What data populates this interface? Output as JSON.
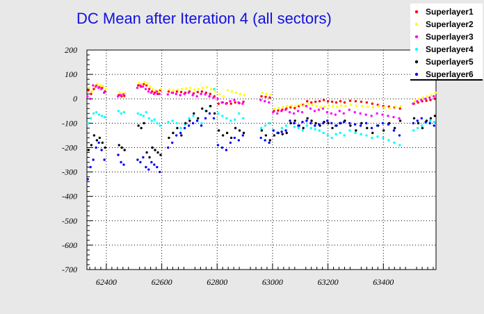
{
  "chart_data": {
    "type": "scatter",
    "title": "DC Mean after Iteration 4 (all sectors)",
    "xlabel": "",
    "ylabel": "",
    "xlim": [
      62330,
      63590
    ],
    "ylim": [
      -700,
      200
    ],
    "xticks": [
      62400,
      62600,
      62800,
      63000,
      63200,
      63400
    ],
    "yticks": [
      200,
      100,
      0,
      -100,
      -200,
      -300,
      -400,
      -500,
      -600,
      -700
    ],
    "grid": true,
    "legend_position": "top-right",
    "series": [
      {
        "name": "Superlayer1",
        "color": "#ff0000",
        "x": [
          62335,
          62345,
          62355,
          62365,
          62375,
          62385,
          62395,
          62445,
          62455,
          62465,
          62515,
          62525,
          62535,
          62545,
          62555,
          62565,
          62575,
          62585,
          62595,
          62625,
          62640,
          62655,
          62670,
          62685,
          62700,
          62715,
          62730,
          62745,
          62760,
          62775,
          62790,
          62805,
          62820,
          62835,
          62850,
          62865,
          62880,
          62895,
          62960,
          62975,
          62990,
          63005,
          63020,
          63035,
          63050,
          63065,
          63080,
          63095,
          63110,
          63125,
          63140,
          63155,
          63170,
          63185,
          63200,
          63215,
          63230,
          63245,
          63260,
          63280,
          63300,
          63320,
          63340,
          63360,
          63380,
          63400,
          63420,
          63440,
          63460,
          63510,
          63525,
          63540,
          63555,
          63570,
          63585
        ],
        "y": [
          35,
          20,
          40,
          55,
          48,
          45,
          30,
          15,
          10,
          12,
          55,
          50,
          60,
          55,
          40,
          30,
          25,
          20,
          35,
          30,
          25,
          30,
          28,
          25,
          30,
          22,
          28,
          30,
          25,
          20,
          10,
          -20,
          -15,
          -18,
          -20,
          -15,
          -18,
          -12,
          10,
          8,
          5,
          -50,
          -48,
          -45,
          -40,
          -35,
          -38,
          -30,
          -25,
          -10,
          -15,
          -12,
          -10,
          -5,
          -10,
          -12,
          -15,
          -10,
          -15,
          -8,
          -10,
          -12,
          -15,
          -20,
          -25,
          -30,
          -32,
          -35,
          -40,
          -20,
          -15,
          -10,
          -8,
          -5,
          0
        ]
      },
      {
        "name": "Superlayer2",
        "color": "#ffff00",
        "x": [
          62338,
          62348,
          62358,
          62368,
          62378,
          62388,
          62398,
          62448,
          62458,
          62468,
          62518,
          62528,
          62538,
          62548,
          62558,
          62568,
          62578,
          62588,
          62598,
          62628,
          62643,
          62658,
          62673,
          62688,
          62703,
          62718,
          62733,
          62748,
          62763,
          62778,
          62793,
          62808,
          62823,
          62838,
          62853,
          62868,
          62883,
          62898,
          62963,
          62978,
          62993,
          63008,
          63023,
          63038,
          63053,
          63068,
          63083,
          63098,
          63113,
          63128,
          63143,
          63158,
          63173,
          63188,
          63203,
          63218,
          63233,
          63248,
          63263,
          63283,
          63303,
          63323,
          63343,
          63363,
          63383,
          63403,
          63423,
          63443,
          63463,
          63513,
          63528,
          63543,
          63558,
          63573,
          63588
        ],
        "y": [
          45,
          30,
          50,
          60,
          55,
          52,
          40,
          25,
          20,
          22,
          65,
          60,
          68,
          62,
          50,
          40,
          35,
          30,
          40,
          38,
          35,
          38,
          40,
          42,
          45,
          38,
          40,
          45,
          48,
          40,
          30,
          20,
          10,
          35,
          30,
          25,
          20,
          15,
          25,
          20,
          18,
          -40,
          -38,
          -35,
          -30,
          -28,
          -30,
          -25,
          -28,
          -20,
          -25,
          -30,
          -35,
          -32,
          -28,
          -30,
          -32,
          -28,
          -30,
          -25,
          -28,
          -30,
          -32,
          -35,
          -30,
          -35,
          -38,
          -32,
          -30,
          -10,
          0,
          5,
          10,
          15,
          25
        ]
      },
      {
        "name": "Superlayer3",
        "color": "#ff00ff",
        "x": [
          62332,
          62342,
          62352,
          62362,
          62372,
          62382,
          62392,
          62442,
          62452,
          62462,
          62512,
          62522,
          62532,
          62542,
          62552,
          62562,
          62572,
          62582,
          62592,
          62622,
          62637,
          62652,
          62667,
          62682,
          62697,
          62712,
          62727,
          62742,
          62757,
          62772,
          62787,
          62802,
          62817,
          62832,
          62847,
          62862,
          62877,
          62892,
          62957,
          62972,
          62987,
          63002,
          63017,
          63032,
          63047,
          63062,
          63077,
          63092,
          63107,
          63122,
          63137,
          63152,
          63167,
          63182,
          63197,
          63212,
          63227,
          63242,
          63257,
          63277,
          63297,
          63317,
          63337,
          63357,
          63377,
          63397,
          63417,
          63437,
          63457,
          63507,
          63522,
          63537,
          63552,
          63567,
          63582
        ],
        "y": [
          10,
          0,
          55,
          50,
          45,
          40,
          25,
          10,
          15,
          18,
          45,
          55,
          50,
          40,
          30,
          25,
          20,
          30,
          20,
          18,
          25,
          20,
          15,
          20,
          25,
          15,
          10,
          20,
          18,
          10,
          5,
          0,
          -15,
          -20,
          -10,
          -5,
          -15,
          -20,
          -5,
          -10,
          -15,
          -55,
          -60,
          -50,
          -45,
          -55,
          -60,
          -50,
          -55,
          -30,
          -40,
          -50,
          -45,
          -40,
          -55,
          -60,
          -65,
          -50,
          -60,
          -45,
          -55,
          -60,
          -65,
          -70,
          -60,
          -65,
          -70,
          -75,
          -80,
          -20,
          -10,
          -5,
          0,
          5,
          10
        ]
      },
      {
        "name": "Superlayer4",
        "color": "#00ffff",
        "x": [
          62334,
          62344,
          62354,
          62364,
          62374,
          62384,
          62394,
          62444,
          62454,
          62464,
          62514,
          62524,
          62534,
          62544,
          62554,
          62564,
          62574,
          62584,
          62594,
          62624,
          62639,
          62654,
          62669,
          62684,
          62699,
          62714,
          62729,
          62744,
          62759,
          62774,
          62789,
          62804,
          62819,
          62834,
          62849,
          62864,
          62879,
          62894,
          62959,
          62974,
          62989,
          63004,
          63019,
          63034,
          63049,
          63064,
          63079,
          63094,
          63109,
          63124,
          63139,
          63154,
          63169,
          63184,
          63199,
          63214,
          63229,
          63244,
          63259,
          63279,
          63299,
          63319,
          63339,
          63359,
          63379,
          63399,
          63419,
          63439,
          63459,
          63509,
          63524,
          63539,
          63554,
          63569,
          63584
        ],
        "y": [
          -100,
          -80,
          -60,
          -55,
          -65,
          -70,
          -75,
          -50,
          -60,
          -55,
          -60,
          -65,
          -70,
          -55,
          -80,
          -90,
          -85,
          -100,
          -110,
          -95,
          -90,
          -100,
          -120,
          -105,
          -80,
          -70,
          -90,
          -100,
          -50,
          -30,
          40,
          -60,
          -70,
          -80,
          -90,
          -85,
          -60,
          -80,
          -120,
          -110,
          -100,
          -130,
          -140,
          -120,
          -110,
          -100,
          -115,
          -120,
          -130,
          -110,
          -120,
          -125,
          -130,
          -140,
          -150,
          -160,
          -145,
          -140,
          -150,
          -130,
          -140,
          -145,
          -150,
          -160,
          -155,
          -160,
          -170,
          -180,
          -190,
          -130,
          -120,
          -110,
          -100,
          -90,
          -95
        ]
      },
      {
        "name": "Superlayer5",
        "color": "#000000",
        "x": [
          62336,
          62346,
          62356,
          62366,
          62376,
          62386,
          62396,
          62446,
          62456,
          62466,
          62516,
          62526,
          62536,
          62546,
          62556,
          62566,
          62576,
          62586,
          62596,
          62626,
          62641,
          62656,
          62671,
          62686,
          62701,
          62716,
          62731,
          62746,
          62761,
          62776,
          62791,
          62806,
          62821,
          62836,
          62851,
          62866,
          62881,
          62896,
          62961,
          62976,
          62991,
          63006,
          63021,
          63036,
          63051,
          63066,
          63081,
          63096,
          63111,
          63126,
          63141,
          63156,
          63171,
          63186,
          63201,
          63216,
          63231,
          63246,
          63261,
          63281,
          63301,
          63321,
          63341,
          63361,
          63381,
          63401,
          63421,
          63441,
          63461,
          63511,
          63526,
          63541,
          63556,
          63571,
          63586
        ],
        "y": [
          -210,
          -190,
          -150,
          -170,
          -160,
          -180,
          -200,
          -190,
          -200,
          -210,
          -110,
          -120,
          -100,
          -220,
          -240,
          -200,
          -210,
          -220,
          -230,
          -160,
          -140,
          -120,
          -150,
          -100,
          -90,
          -60,
          -80,
          -40,
          -50,
          -30,
          -60,
          -130,
          -150,
          -140,
          -160,
          -120,
          -130,
          -140,
          -130,
          -150,
          -170,
          -150,
          -140,
          -145,
          -140,
          -100,
          -90,
          -110,
          -120,
          -80,
          -90,
          -100,
          -110,
          -95,
          -100,
          -120,
          -110,
          -100,
          -90,
          -110,
          -130,
          -100,
          -120,
          -140,
          -110,
          -130,
          -100,
          -120,
          -90,
          -80,
          -100,
          -120,
          -90,
          -80,
          -70
        ]
      },
      {
        "name": "Superlayer6",
        "color": "#0000ff",
        "x": [
          62333,
          62343,
          62353,
          62363,
          62373,
          62383,
          62393,
          62443,
          62453,
          62463,
          62513,
          62523,
          62533,
          62543,
          62553,
          62563,
          62573,
          62583,
          62593,
          62623,
          62638,
          62653,
          62668,
          62683,
          62698,
          62713,
          62728,
          62743,
          62758,
          62773,
          62788,
          62803,
          62818,
          62833,
          62848,
          62863,
          62878,
          62893,
          62958,
          62973,
          62988,
          63003,
          63018,
          63033,
          63048,
          63063,
          63078,
          63093,
          63108,
          63123,
          63138,
          63153,
          63168,
          63183,
          63198,
          63213,
          63228,
          63243,
          63258,
          63278,
          63298,
          63318,
          63338,
          63358,
          63378,
          63398,
          63418,
          63438,
          63458,
          63508,
          63523,
          63538,
          63553,
          63568,
          63583
        ],
        "y": [
          -330,
          -280,
          -250,
          -200,
          -180,
          -210,
          -250,
          -230,
          -260,
          -270,
          -250,
          -260,
          -240,
          -280,
          -290,
          -260,
          -270,
          -280,
          -300,
          -200,
          -180,
          -150,
          -140,
          -120,
          -110,
          -100,
          -90,
          -110,
          -80,
          -60,
          -80,
          -190,
          -200,
          -210,
          -180,
          -160,
          -170,
          -150,
          -160,
          -170,
          -180,
          -130,
          -140,
          -135,
          -130,
          -90,
          -100,
          -110,
          -95,
          -90,
          -100,
          -110,
          -105,
          -100,
          -90,
          -100,
          -110,
          -100,
          -95,
          -100,
          -105,
          -110,
          -100,
          -120,
          -110,
          -100,
          -105,
          -130,
          -150,
          -100,
          -90,
          -80,
          -95,
          -100,
          -110
        ]
      }
    ]
  }
}
